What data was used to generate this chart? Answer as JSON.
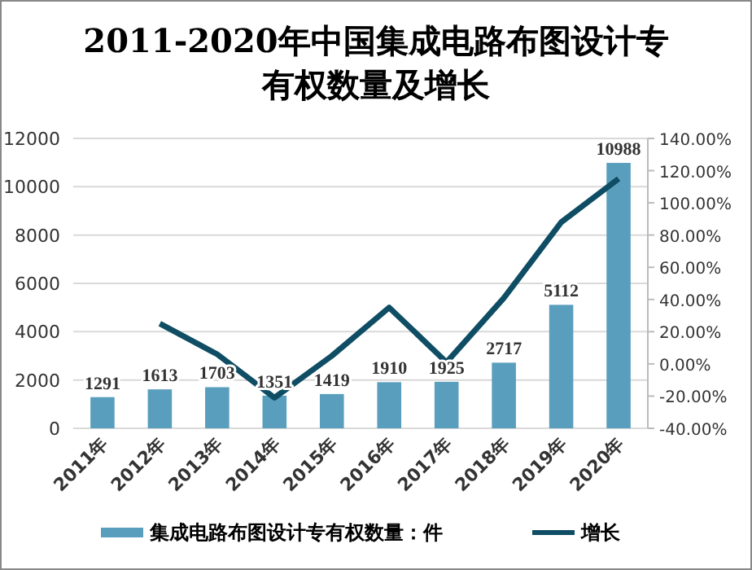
{
  "chart_data": {
    "type": "bar",
    "title": "2011-2020年中国集成电路布图设计专有权数量及增长",
    "categories": [
      "2011年",
      "2012年",
      "2013年",
      "2014年",
      "2015年",
      "2016年",
      "2017年",
      "2018年",
      "2019年",
      "2020年"
    ],
    "series": [
      {
        "name": "集成电路布图设计专有权数量：件",
        "color": "#5a9ebd",
        "values": [
          1291,
          1613,
          1703,
          1351,
          1419,
          1910,
          1925,
          2717,
          5112,
          10988
        ],
        "value_labels": [
          "1291",
          "1613",
          "1703",
          "1351",
          "1419",
          "1910",
          "1925",
          "2717",
          "5112",
          "10988"
        ]
      },
      {
        "name": "增长",
        "type": "line",
        "axis": "y2",
        "color": "#0e4d64",
        "values": [
          null,
          25,
          6,
          -21,
          5,
          35,
          1,
          41,
          88,
          115
        ]
      }
    ],
    "ylim": [
      0,
      12000
    ],
    "yticks": [
      0,
      2000,
      4000,
      6000,
      8000,
      10000,
      12000
    ],
    "y2lim": [
      -40,
      140
    ],
    "y2ticks": [
      {
        "value": -40,
        "label": "-40.00%"
      },
      {
        "value": -20,
        "label": "-20.00%"
      },
      {
        "value": 0,
        "label": "0.00%"
      },
      {
        "value": 20,
        "label": "20.00%"
      },
      {
        "value": 40,
        "label": "40.00%"
      },
      {
        "value": 60,
        "label": "60.00%"
      },
      {
        "value": 80,
        "label": "80.00%"
      },
      {
        "value": 100,
        "label": "100.00%"
      },
      {
        "value": 120,
        "label": "120.00%"
      },
      {
        "value": 140,
        "label": "140.00%"
      }
    ],
    "grid": "y",
    "legend": "bottom",
    "marker": "none",
    "line_style": "solid"
  }
}
